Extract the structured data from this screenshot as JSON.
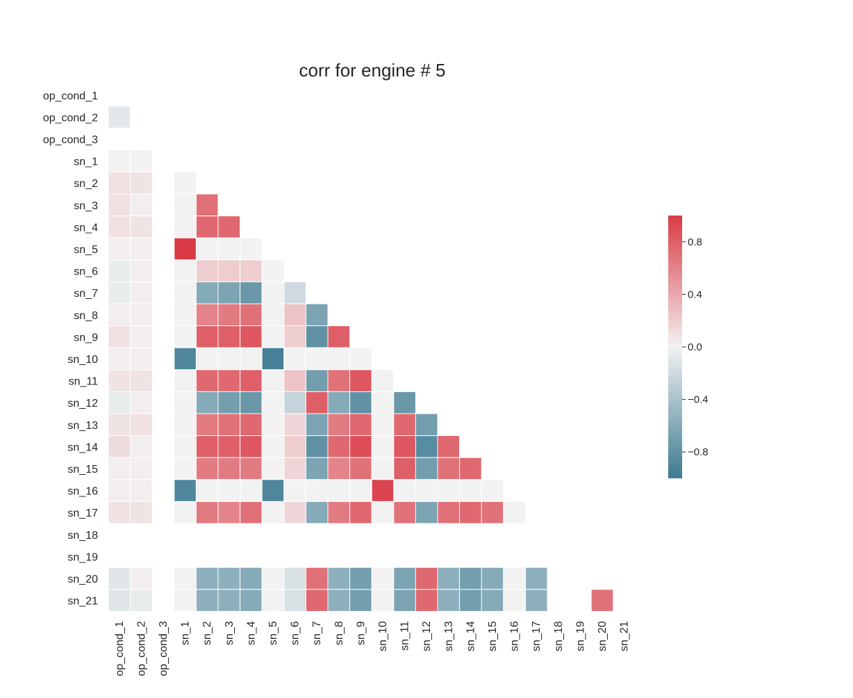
{
  "chart_data": {
    "type": "heatmap",
    "title": "corr for engine # 5",
    "mask": "upper-triangle-with-diagonal",
    "labels": [
      "op_cond_1",
      "op_cond_2",
      "op_cond_3",
      "sn_1",
      "sn_2",
      "sn_3",
      "sn_4",
      "sn_5",
      "sn_6",
      "sn_7",
      "sn_8",
      "sn_9",
      "sn_10",
      "sn_11",
      "sn_12",
      "sn_13",
      "sn_14",
      "sn_15",
      "sn_16",
      "sn_17",
      "sn_18",
      "sn_19",
      "sn_20",
      "sn_21"
    ],
    "matrix": [
      [
        null,
        null,
        null,
        null,
        null,
        null,
        null,
        null,
        null,
        null,
        null,
        null,
        null,
        null,
        null,
        null,
        null,
        null,
        null,
        null,
        null,
        null,
        null,
        null
      ],
      [
        -0.08,
        null,
        null,
        null,
        null,
        null,
        null,
        null,
        null,
        null,
        null,
        null,
        null,
        null,
        null,
        null,
        null,
        null,
        null,
        null,
        null,
        null,
        null,
        null
      ],
      [
        null,
        null,
        null,
        null,
        null,
        null,
        null,
        null,
        null,
        null,
        null,
        null,
        null,
        null,
        null,
        null,
        null,
        null,
        null,
        null,
        null,
        null,
        null,
        null
      ],
      [
        0,
        0,
        null,
        null,
        null,
        null,
        null,
        null,
        null,
        null,
        null,
        null,
        null,
        null,
        null,
        null,
        null,
        null,
        null,
        null,
        null,
        null,
        null,
        null
      ],
      [
        0.1,
        0.08,
        null,
        0,
        null,
        null,
        null,
        null,
        null,
        null,
        null,
        null,
        null,
        null,
        null,
        null,
        null,
        null,
        null,
        null,
        null,
        null,
        null,
        null
      ],
      [
        0.1,
        0.02,
        null,
        0,
        0.7,
        null,
        null,
        null,
        null,
        null,
        null,
        null,
        null,
        null,
        null,
        null,
        null,
        null,
        null,
        null,
        null,
        null,
        null,
        null
      ],
      [
        0.1,
        0.08,
        null,
        0,
        0.75,
        0.75,
        null,
        null,
        null,
        null,
        null,
        null,
        null,
        null,
        null,
        null,
        null,
        null,
        null,
        null,
        null,
        null,
        null,
        null
      ],
      [
        0.02,
        0.02,
        null,
        1.0,
        0,
        0,
        0,
        null,
        null,
        null,
        null,
        null,
        null,
        null,
        null,
        null,
        null,
        null,
        null,
        null,
        null,
        null,
        null,
        null
      ],
      [
        -0.05,
        0.02,
        null,
        0,
        0.2,
        0.2,
        0.2,
        0,
        null,
        null,
        null,
        null,
        null,
        null,
        null,
        null,
        null,
        null,
        null,
        null,
        null,
        null,
        null,
        null
      ],
      [
        -0.05,
        0.02,
        null,
        0,
        -0.6,
        -0.65,
        -0.75,
        0,
        -0.2,
        null,
        null,
        null,
        null,
        null,
        null,
        null,
        null,
        null,
        null,
        null,
        null,
        null,
        null,
        null
      ],
      [
        0.02,
        0.02,
        null,
        0,
        0.6,
        0.65,
        0.7,
        0,
        0.25,
        -0.65,
        null,
        null,
        null,
        null,
        null,
        null,
        null,
        null,
        null,
        null,
        null,
        null,
        null,
        null
      ],
      [
        0.1,
        0.02,
        null,
        0,
        0.8,
        0.8,
        0.85,
        0,
        0.2,
        -0.8,
        0.8,
        null,
        null,
        null,
        null,
        null,
        null,
        null,
        null,
        null,
        null,
        null,
        null,
        null
      ],
      [
        0.02,
        0.02,
        null,
        -0.9,
        0,
        0,
        0,
        -0.95,
        0,
        0,
        0,
        0,
        null,
        null,
        null,
        null,
        null,
        null,
        null,
        null,
        null,
        null,
        null,
        null
      ],
      [
        0.08,
        0.08,
        null,
        0,
        0.75,
        0.75,
        0.8,
        0,
        0.25,
        -0.7,
        0.7,
        0.85,
        0,
        null,
        null,
        null,
        null,
        null,
        null,
        null,
        null,
        null,
        null,
        null
      ],
      [
        -0.05,
        0.02,
        null,
        0,
        -0.6,
        -0.7,
        -0.75,
        0,
        -0.25,
        0.8,
        -0.6,
        -0.8,
        0,
        -0.75,
        null,
        null,
        null,
        null,
        null,
        null,
        null,
        null,
        null,
        null
      ],
      [
        0.08,
        0.1,
        null,
        0,
        0.65,
        0.7,
        0.75,
        0,
        0.15,
        -0.65,
        0.65,
        0.75,
        0,
        0.75,
        -0.7,
        null,
        null,
        null,
        null,
        null,
        null,
        null,
        null,
        null
      ],
      [
        0.12,
        0.02,
        null,
        0,
        0.8,
        0.8,
        0.85,
        0,
        0.2,
        -0.8,
        0.75,
        0.9,
        0,
        0.85,
        -0.85,
        0.75,
        null,
        null,
        null,
        null,
        null,
        null,
        null,
        null
      ],
      [
        0.02,
        0.02,
        null,
        0,
        0.65,
        0.65,
        0.65,
        0,
        0.15,
        -0.65,
        0.6,
        0.7,
        0,
        0.8,
        -0.7,
        0.7,
        0.75,
        null,
        null,
        null,
        null,
        null,
        null,
        null
      ],
      [
        0.02,
        0.02,
        null,
        -0.9,
        0,
        0,
        0,
        -0.9,
        0,
        0,
        0,
        0,
        0.95,
        0,
        0,
        0,
        0,
        0,
        null,
        null,
        null,
        null,
        null,
        null
      ],
      [
        0.08,
        0.08,
        null,
        0,
        0.65,
        0.6,
        0.7,
        0,
        0.15,
        -0.6,
        0.65,
        0.75,
        0,
        0.7,
        -0.65,
        0.7,
        0.75,
        0.7,
        0,
        null,
        null,
        null,
        null,
        null
      ],
      [
        null,
        null,
        null,
        null,
        null,
        null,
        null,
        null,
        null,
        null,
        null,
        null,
        null,
        null,
        null,
        null,
        null,
        null,
        null,
        null,
        null,
        null,
        null,
        null
      ],
      [
        null,
        null,
        null,
        null,
        null,
        null,
        null,
        null,
        null,
        null,
        null,
        null,
        null,
        null,
        null,
        null,
        null,
        null,
        null,
        null,
        null,
        null,
        null,
        null
      ],
      [
        -0.1,
        0.02,
        null,
        0,
        -0.55,
        -0.55,
        -0.6,
        0,
        -0.15,
        0.7,
        -0.55,
        -0.7,
        0,
        -0.65,
        0.75,
        -0.55,
        -0.7,
        -0.6,
        0,
        -0.55,
        null,
        null,
        null,
        null
      ],
      [
        -0.1,
        -0.05,
        null,
        0,
        -0.55,
        -0.55,
        -0.6,
        0,
        -0.15,
        0.75,
        -0.55,
        -0.7,
        0,
        -0.65,
        0.75,
        -0.55,
        -0.7,
        -0.6,
        0,
        -0.55,
        null,
        null,
        0.7,
        null
      ]
    ],
    "colorbar": {
      "range": [
        -1,
        1
      ],
      "ticks": [
        0.8,
        0.4,
        0.0,
        -0.4,
        -0.8
      ],
      "tick_labels": [
        "0.8",
        "0.4",
        "0.0",
        "−0.4",
        "−0.8"
      ],
      "colors": {
        "negative": "#3d7a91",
        "center": "#f2f2f2",
        "positive": "#da3a45"
      }
    }
  }
}
